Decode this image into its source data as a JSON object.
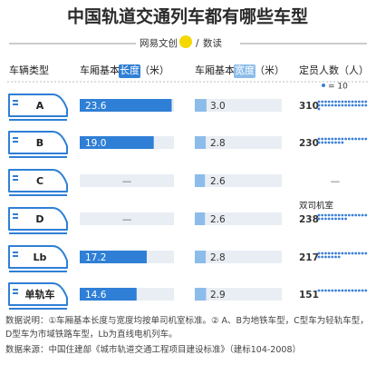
{
  "chart_data": {
    "type": "table-bars",
    "title": "中国轨道交通列车都有哪些车型",
    "brand": "网易文创",
    "section": "数读",
    "headers": {
      "type": "车辆类型",
      "length": [
        "车厢基本",
        "长度",
        "（米）"
      ],
      "width": [
        "车厢基本",
        "宽度",
        "（米）"
      ],
      "capacity": "定员人数（人）"
    },
    "dot_unit": {
      "value": 10,
      "label": "= 10"
    },
    "categories": [
      "A",
      "B",
      "C",
      "D",
      "Lb",
      "单轨车"
    ],
    "row_notes": [
      null,
      null,
      null,
      "双司机室",
      null,
      null
    ],
    "series": [
      {
        "color": "#2f7fd6",
        "values": [
          23.6,
          19.0,
          null,
          null,
          17.2,
          14.6
        ],
        "value_labels": [
          "23.6",
          "19.0",
          "—",
          "—",
          "17.2",
          "14.6"
        ]
      },
      {
        "color": "#8cbcea",
        "values": [
          3.0,
          2.8,
          2.6,
          2.6,
          2.8,
          2.9
        ],
        "value_labels": [
          "3.0",
          "2.8",
          "2.6",
          "2.6",
          "2.8",
          "2.9"
        ]
      },
      {
        "color": "#3a7fd8",
        "values": [
          310,
          230,
          null,
          238,
          217,
          151
        ],
        "value_labels": [
          "310",
          "230",
          "—",
          "238",
          "217",
          "151"
        ]
      }
    ],
    "notes": [
      "数据说明：①车厢基本长度与宽度均按单司机室标准。② A、B为地铁车型，C型车为轻轨车型，D型车为市域铁路车型，Lb为直线电机列车。",
      "数据来源：中国住建部《城市轨道交通工程项目建设标准》（建标104-2008）"
    ]
  }
}
